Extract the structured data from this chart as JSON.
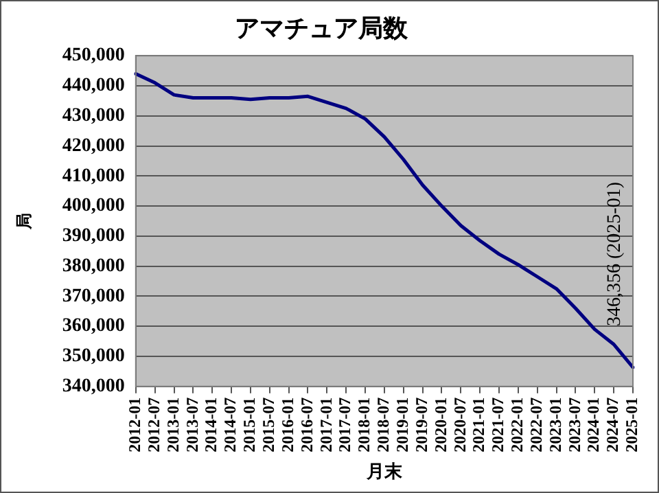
{
  "chart_data": {
    "type": "line",
    "title": "アマチュア局数",
    "xlabel": "月末",
    "ylabel": "局",
    "categories": [
      "2012-01",
      "2012-07",
      "2013-01",
      "2013-07",
      "2014-01",
      "2014-07",
      "2015-01",
      "2015-07",
      "2016-01",
      "2016-07",
      "2017-01",
      "2017-07",
      "2018-01",
      "2018-07",
      "2019-01",
      "2019-07",
      "2020-01",
      "2020-07",
      "2021-01",
      "2021-07",
      "2022-01",
      "2022-07",
      "2023-01",
      "2023-07",
      "2024-01",
      "2024-07",
      "2025-01"
    ],
    "series": [
      {
        "color": "#000080",
        "values": [
          444000,
          441000,
          437000,
          436000,
          436000,
          436000,
          435500,
          436000,
          436000,
          436500,
          434500,
          432500,
          429000,
          423000,
          415500,
          407000,
          400000,
          393500,
          388500,
          384000,
          380500,
          376500,
          372500,
          366000,
          359000,
          354000,
          346356
        ]
      }
    ],
    "ylim": [
      340000,
      450000
    ],
    "yticks": [
      {
        "value": 340000,
        "label": "340,000"
      },
      {
        "value": 350000,
        "label": "350,000"
      },
      {
        "value": 360000,
        "label": "360,000"
      },
      {
        "value": 370000,
        "label": "370,000"
      },
      {
        "value": 380000,
        "label": "380,000"
      },
      {
        "value": 390000,
        "label": "390,000"
      },
      {
        "value": 400000,
        "label": "400,000"
      },
      {
        "value": 410000,
        "label": "410,000"
      },
      {
        "value": 420000,
        "label": "420,000"
      },
      {
        "value": 430000,
        "label": "430,000"
      },
      {
        "value": 440000,
        "label": "440,000"
      },
      {
        "value": 450000,
        "label": "450,000"
      }
    ],
    "grid": "y",
    "legend": false,
    "marker": "none",
    "line_style": "solid",
    "annotations": [
      {
        "text": "346,356 (2025-01)",
        "x": "2025-01",
        "y": 346356
      }
    ]
  }
}
